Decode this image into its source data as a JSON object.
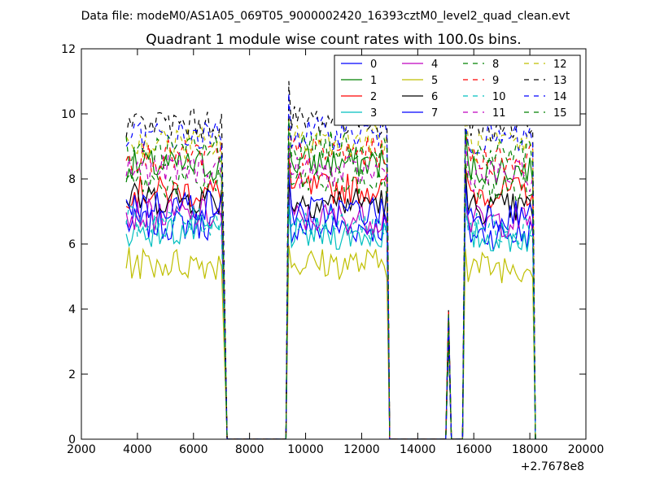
{
  "header": {
    "file_label": "Data file: modeM0/AS1A05_069T05_9000002420_16393cztM0_level2_quad_clean.evt"
  },
  "chart_data": {
    "type": "line",
    "title": "Quadrant 1 module wise count rates with 100.0s bins.",
    "xlabel": "",
    "ylabel": "",
    "x_offset_label": "+2.7678e8",
    "xlim": [
      2000,
      20000
    ],
    "ylim": [
      0,
      12
    ],
    "x_ticks": [
      2000,
      4000,
      6000,
      8000,
      10000,
      12000,
      14000,
      16000,
      18000,
      20000
    ],
    "y_ticks": [
      0,
      2,
      4,
      6,
      8,
      10,
      12
    ],
    "grid": false,
    "legend_placement": "top-right",
    "legend_columns": 4,
    "segments": [
      {
        "start": 3600,
        "end": 7000,
        "step": 100
      },
      {
        "start": 9400,
        "end": 12900,
        "step": 100
      },
      {
        "start": 15700,
        "end": 18100,
        "step": 100
      }
    ],
    "gap_points": [
      [
        7200,
        0
      ],
      [
        9300,
        0
      ],
      [
        13000,
        0
      ],
      [
        15000,
        0
      ],
      [
        15100,
        3.5
      ],
      [
        15200,
        0
      ],
      [
        15600,
        0
      ],
      [
        18200,
        0
      ]
    ],
    "series": [
      {
        "name": "0",
        "color": "#0000ff",
        "dash": "solid",
        "levels": [
          6.6,
          6.5,
          6.3
        ]
      },
      {
        "name": "1",
        "color": "#008000",
        "dash": "solid",
        "levels": [
          8.4,
          8.5,
          8.3
        ]
      },
      {
        "name": "2",
        "color": "#ff0000",
        "dash": "solid",
        "levels": [
          7.6,
          7.7,
          7.6
        ]
      },
      {
        "name": "3",
        "color": "#00bfbf",
        "dash": "solid",
        "levels": [
          6.4,
          6.3,
          6.2
        ]
      },
      {
        "name": "4",
        "color": "#bf00bf",
        "dash": "solid",
        "levels": [
          6.9,
          6.8,
          6.7
        ]
      },
      {
        "name": "5",
        "color": "#bfbf00",
        "dash": "solid",
        "levels": [
          5.4,
          5.4,
          5.3
        ]
      },
      {
        "name": "6",
        "color": "#000000",
        "dash": "solid",
        "levels": [
          7.4,
          7.3,
          7.1
        ]
      },
      {
        "name": "7",
        "color": "#0000ff",
        "dash": "solid",
        "levels": [
          7.2,
          7.0,
          6.9
        ]
      },
      {
        "name": "8",
        "color": "#008000",
        "dash": "dashed",
        "levels": [
          7.9,
          7.9,
          7.7
        ]
      },
      {
        "name": "9",
        "color": "#ff0000",
        "dash": "dashed",
        "levels": [
          8.7,
          8.8,
          8.6
        ]
      },
      {
        "name": "10",
        "color": "#00bfbf",
        "dash": "dashed",
        "levels": [
          6.7,
          6.6,
          6.5
        ]
      },
      {
        "name": "11",
        "color": "#bf00bf",
        "dash": "dashed",
        "levels": [
          8.3,
          8.2,
          8.1
        ]
      },
      {
        "name": "12",
        "color": "#bfbf00",
        "dash": "dashed",
        "levels": [
          9.1,
          9.2,
          9.0
        ]
      },
      {
        "name": "13",
        "color": "#000000",
        "dash": "dashed",
        "levels": [
          9.7,
          9.8,
          9.6
        ]
      },
      {
        "name": "14",
        "color": "#0000ff",
        "dash": "dashed",
        "levels": [
          9.3,
          9.4,
          9.2
        ]
      },
      {
        "name": "15",
        "color": "#008000",
        "dash": "dashed",
        "levels": [
          8.9,
          9.0,
          8.8
        ]
      }
    ]
  }
}
